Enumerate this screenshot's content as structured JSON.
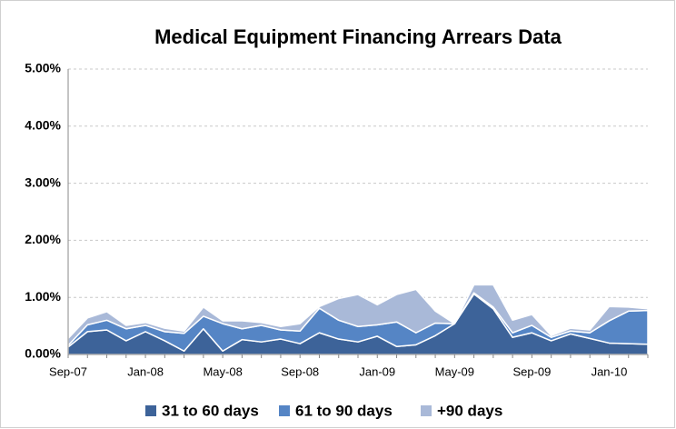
{
  "chart_data": {
    "type": "area",
    "stacked": true,
    "title": "Medical Equipment  Financing  Arrears Data",
    "categories": [
      "Sep-07",
      null,
      null,
      null,
      "Jan-08",
      null,
      null,
      null,
      "May-08",
      null,
      null,
      null,
      "Sep-08",
      null,
      null,
      null,
      "Jan-09",
      null,
      null,
      null,
      "May-09",
      null,
      null,
      null,
      "Sep-09",
      null,
      null,
      null,
      "Jan-10",
      null,
      null
    ],
    "series": [
      {
        "name": "31 to 60 days",
        "color": "#3d6399",
        "values": [
          0.13,
          0.4,
          0.43,
          0.24,
          0.4,
          0.24,
          0.06,
          0.45,
          0.06,
          0.26,
          0.22,
          0.27,
          0.19,
          0.38,
          0.27,
          0.22,
          0.32,
          0.14,
          0.17,
          0.33,
          0.54,
          1.06,
          0.8,
          0.3,
          0.38,
          0.24,
          0.36,
          0.28,
          0.2,
          0.19,
          0.18
        ]
      },
      {
        "name": "61 to 90 days",
        "color": "#5585c5",
        "values": [
          0.03,
          0.12,
          0.17,
          0.21,
          0.11,
          0.16,
          0.31,
          0.22,
          0.48,
          0.19,
          0.29,
          0.16,
          0.22,
          0.43,
          0.33,
          0.27,
          0.2,
          0.43,
          0.21,
          0.22,
          0,
          0.02,
          0.03,
          0.08,
          0.13,
          0.06,
          0.05,
          0.1,
          0.39,
          0.57,
          0.59
        ]
      },
      {
        "name": "+90 days",
        "color": "#a9b9d8",
        "values": [
          0.12,
          0.12,
          0.15,
          0.06,
          0.05,
          0.06,
          0.04,
          0.16,
          0.05,
          0.14,
          0.05,
          0.06,
          0.13,
          0.03,
          0.38,
          0.56,
          0.35,
          0.48,
          0.76,
          0.21,
          0,
          0.14,
          0.39,
          0.22,
          0.19,
          0.03,
          0.05,
          0.05,
          0.25,
          0.07,
          0.03
        ]
      }
    ],
    "ylim": [
      0,
      5
    ],
    "yticks": [
      {
        "value": 0,
        "label": "0.00%"
      },
      {
        "value": 1,
        "label": "1.00%"
      },
      {
        "value": 2,
        "label": "2.00%"
      },
      {
        "value": 3,
        "label": "3.00%"
      },
      {
        "value": 4,
        "label": "4.00%"
      },
      {
        "value": 5,
        "label": "5.00%"
      }
    ],
    "grid": true,
    "legend": "bottom"
  }
}
